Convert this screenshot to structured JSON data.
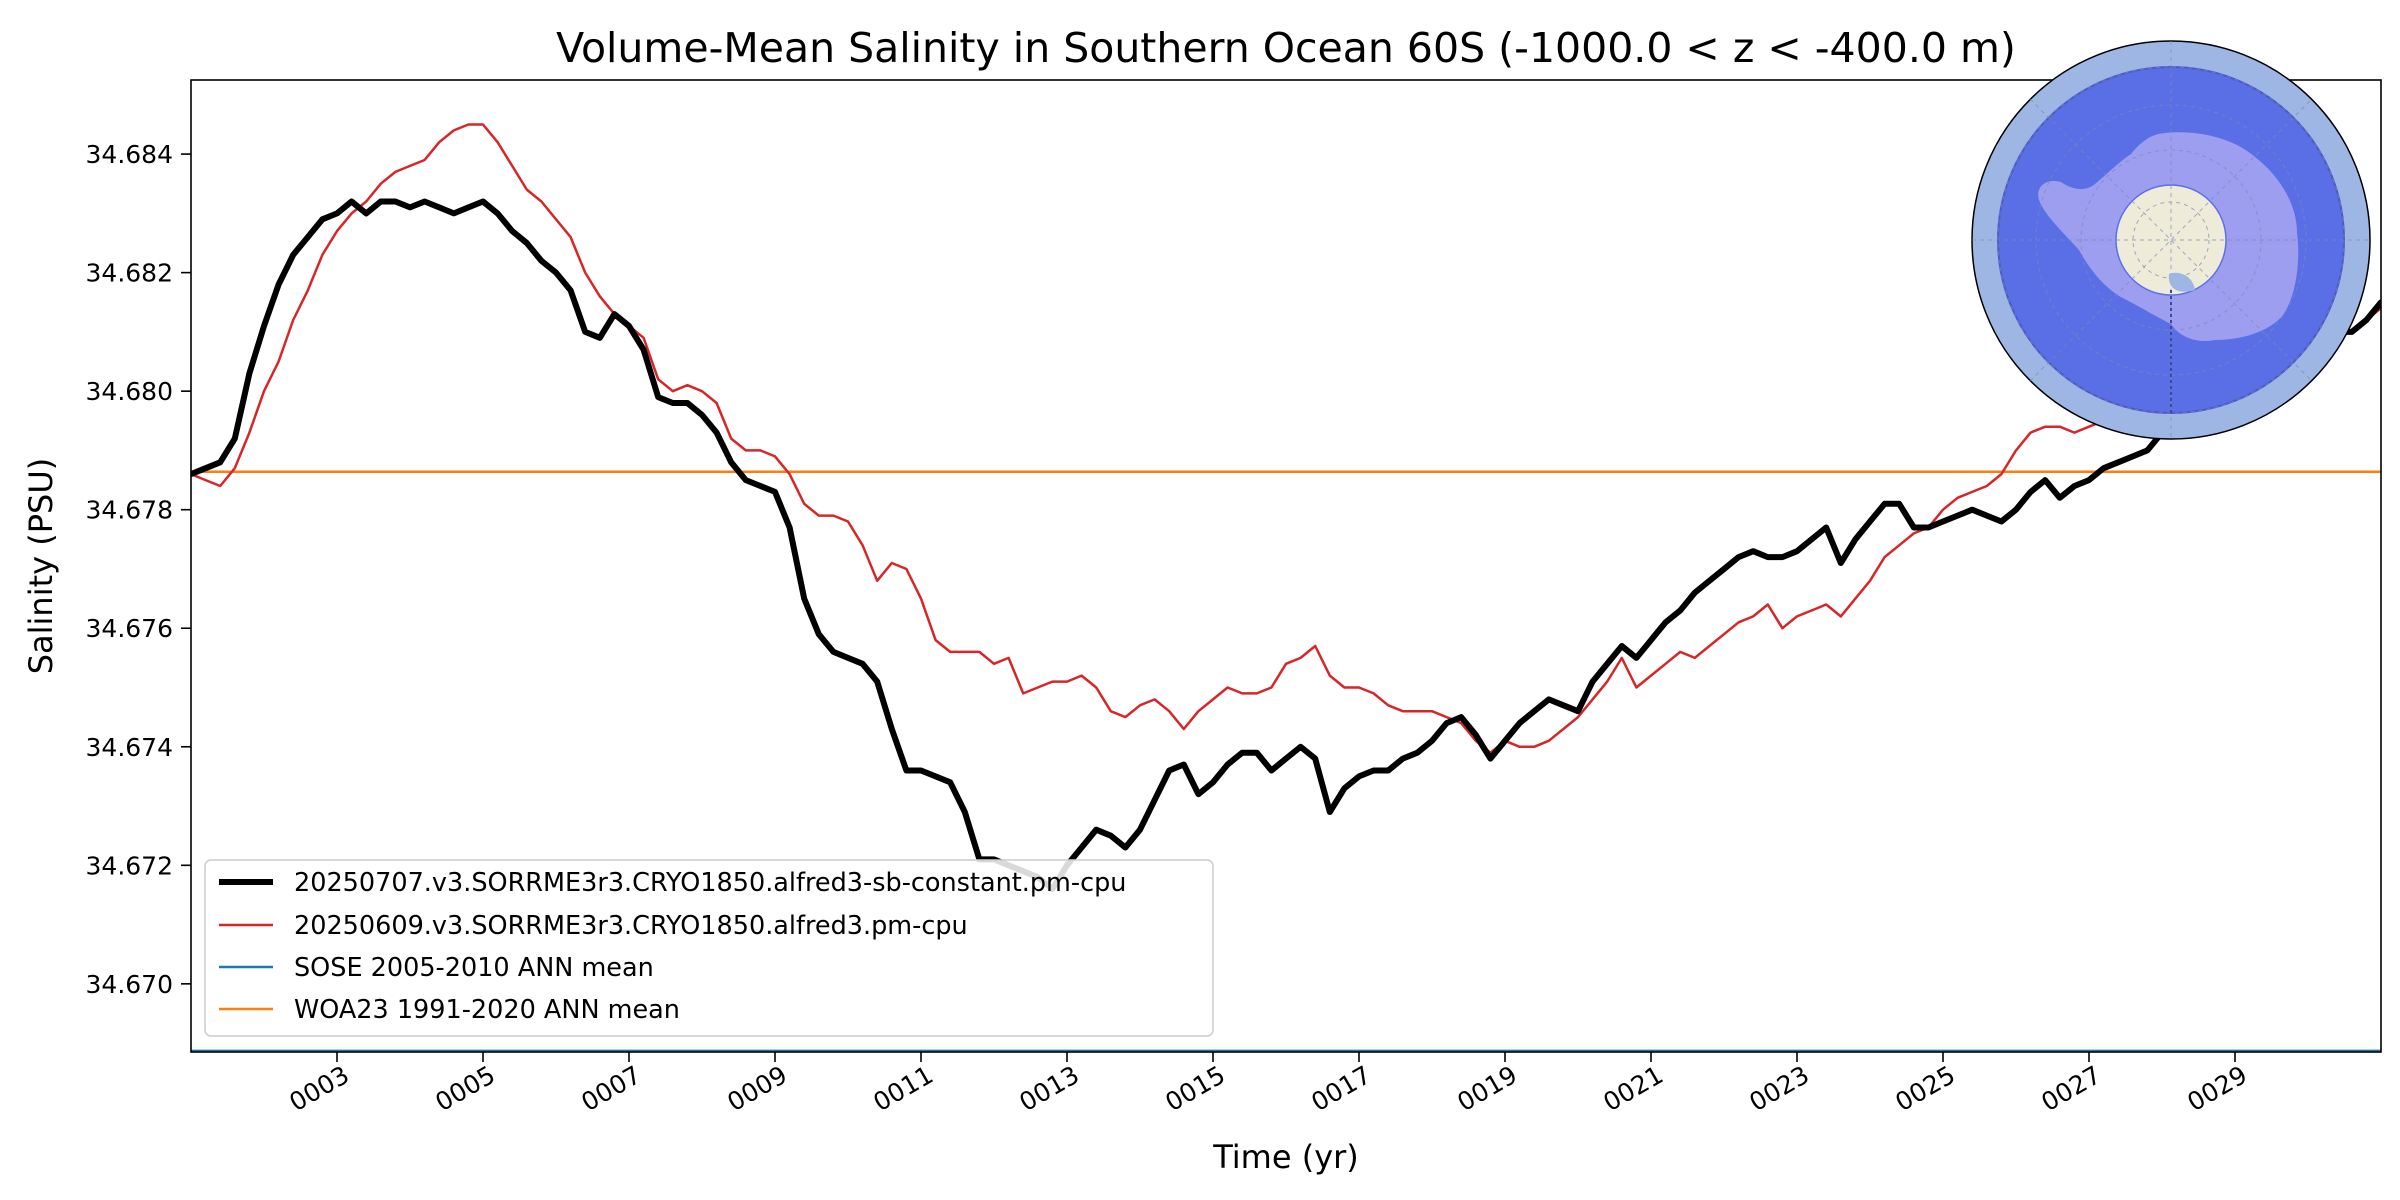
{
  "chart_data": {
    "type": "line",
    "title": "Volume-Mean Salinity in Southern Ocean 60S (-1000.0 < z < -400.0 m)",
    "xlabel": "Time (yr)",
    "ylabel": "Salinity (PSU)",
    "xlim": [
      1.0,
      31.0
    ],
    "ylim": [
      34.66885,
      34.68525
    ],
    "x_tick_values": [
      3,
      5,
      7,
      9,
      11,
      13,
      15,
      17,
      19,
      21,
      23,
      25,
      27,
      29
    ],
    "x_tick_labels": [
      "0003",
      "0005",
      "0007",
      "0009",
      "0011",
      "0013",
      "0015",
      "0017",
      "0019",
      "0021",
      "0023",
      "0025",
      "0027",
      "0029"
    ],
    "y_tick_values": [
      34.67,
      34.672,
      34.674,
      34.676,
      34.678,
      34.68,
      34.682,
      34.684
    ],
    "y_tick_labels": [
      "34.670",
      "34.672",
      "34.674",
      "34.676",
      "34.678",
      "34.680",
      "34.682",
      "34.684"
    ],
    "grid": false,
    "legend_position": "lower-left",
    "series": [
      {
        "name": "20250707.v3.SORRME3r3.CRYO1850.alfred3-sb-constant.pm-cpu",
        "color": "#000000",
        "style": "thick",
        "x": [
          1.0,
          1.2,
          1.4,
          1.6,
          1.8,
          2.0,
          2.2,
          2.4,
          2.6,
          2.8,
          3.0,
          3.2,
          3.4,
          3.6,
          3.8,
          4.0,
          4.2,
          4.4,
          4.6,
          4.8,
          5.0,
          5.2,
          5.4,
          5.6,
          5.8,
          6.0,
          6.2,
          6.4,
          6.6,
          6.8,
          7.0,
          7.2,
          7.4,
          7.6,
          7.8,
          8.0,
          8.2,
          8.4,
          8.6,
          8.8,
          9.0,
          9.2,
          9.4,
          9.6,
          9.8,
          10.0,
          10.2,
          10.4,
          10.6,
          10.8,
          11.0,
          11.2,
          11.4,
          11.6,
          11.8,
          12.0,
          12.2,
          12.4,
          12.6,
          12.8,
          13.0,
          13.2,
          13.4,
          13.6,
          13.8,
          14.0,
          14.2,
          14.4,
          14.6,
          14.8,
          15.0,
          15.2,
          15.4,
          15.6,
          15.8,
          16.0,
          16.2,
          16.4,
          16.6,
          16.8,
          17.0,
          17.2,
          17.4,
          17.6,
          17.8,
          18.0,
          18.2,
          18.4,
          18.6,
          18.8,
          19.0,
          19.2,
          19.4,
          19.6,
          19.8,
          20.0,
          20.2,
          20.4,
          20.6,
          20.8,
          21.0,
          21.2,
          21.4,
          21.6,
          21.8,
          22.0,
          22.2,
          22.4,
          22.6,
          22.8,
          23.0,
          23.2,
          23.4,
          23.6,
          23.8,
          24.0,
          24.2,
          24.4,
          24.6,
          24.8,
          25.0,
          25.2,
          25.4,
          25.6,
          25.8,
          26.0,
          26.2,
          26.4,
          26.6,
          26.8,
          27.0,
          27.2,
          27.4,
          27.6,
          27.8,
          28.0,
          30.4,
          30.6,
          30.8,
          31.0
        ],
        "y": [
          34.6786,
          34.6787,
          34.6788,
          34.6792,
          34.6803,
          34.6811,
          34.6818,
          34.6823,
          34.6826,
          34.6829,
          34.683,
          34.6832,
          34.683,
          34.6832,
          34.6832,
          34.6831,
          34.6832,
          34.6831,
          34.683,
          34.6831,
          34.6832,
          34.683,
          34.6827,
          34.6825,
          34.6822,
          34.682,
          34.6817,
          34.681,
          34.6809,
          34.6813,
          34.6811,
          34.6807,
          34.6799,
          34.6798,
          34.6798,
          34.6796,
          34.6793,
          34.6788,
          34.6785,
          34.6784,
          34.6783,
          34.6777,
          34.6765,
          34.6759,
          34.6756,
          34.6755,
          34.6754,
          34.6751,
          34.6743,
          34.6736,
          34.6736,
          34.6735,
          34.6734,
          34.6729,
          34.6721,
          34.6721,
          34.672,
          34.6719,
          34.6718,
          34.6716,
          34.672,
          34.6723,
          34.6726,
          34.6725,
          34.6723,
          34.6726,
          34.6731,
          34.6736,
          34.6737,
          34.6732,
          34.6734,
          34.6737,
          34.6739,
          34.6739,
          34.6736,
          34.6738,
          34.674,
          34.6738,
          34.6729,
          34.6733,
          34.6735,
          34.6736,
          34.6736,
          34.6738,
          34.6739,
          34.6741,
          34.6744,
          34.6745,
          34.6742,
          34.6738,
          34.6741,
          34.6744,
          34.6746,
          34.6748,
          34.6747,
          34.6746,
          34.6751,
          34.6754,
          34.6757,
          34.6755,
          34.6758,
          34.6761,
          34.6763,
          34.6766,
          34.6768,
          34.677,
          34.6772,
          34.6773,
          34.6772,
          34.6772,
          34.6773,
          34.6775,
          34.6777,
          34.6771,
          34.6775,
          34.6778,
          34.6781,
          34.6781,
          34.6777,
          34.6777,
          34.6778,
          34.6779,
          34.678,
          34.6779,
          34.6778,
          34.678,
          34.6783,
          34.6785,
          34.6782,
          34.6784,
          34.6785,
          34.6787,
          34.6788,
          34.6789,
          34.679,
          34.6793,
          34.681,
          34.681,
          34.6812,
          34.6815
        ]
      },
      {
        "name": "20250609.v3.SORRME3r3.CRYO1850.alfred3.pm-cpu",
        "color": "#d62728",
        "style": "thin",
        "x": [
          1.0,
          1.2,
          1.4,
          1.6,
          1.8,
          2.0,
          2.2,
          2.4,
          2.6,
          2.8,
          3.0,
          3.2,
          3.4,
          3.6,
          3.8,
          4.0,
          4.2,
          4.4,
          4.6,
          4.8,
          5.0,
          5.2,
          5.4,
          5.6,
          5.8,
          6.0,
          6.2,
          6.4,
          6.6,
          6.8,
          7.0,
          7.2,
          7.4,
          7.6,
          7.8,
          8.0,
          8.2,
          8.4,
          8.6,
          8.8,
          9.0,
          9.2,
          9.4,
          9.6,
          9.8,
          10.0,
          10.2,
          10.4,
          10.6,
          10.8,
          11.0,
          11.2,
          11.4,
          11.6,
          11.8,
          12.0,
          12.2,
          12.4,
          12.6,
          12.8,
          13.0,
          13.2,
          13.4,
          13.6,
          13.8,
          14.0,
          14.2,
          14.4,
          14.6,
          14.8,
          15.0,
          15.2,
          15.4,
          15.6,
          15.8,
          16.0,
          16.2,
          16.4,
          16.6,
          16.8,
          17.0,
          17.2,
          17.4,
          17.6,
          17.8,
          18.0,
          18.2,
          18.4,
          18.6,
          18.8,
          19.0,
          19.2,
          19.4,
          19.6,
          19.8,
          20.0,
          20.2,
          20.4,
          20.6,
          20.8,
          21.0,
          21.2,
          21.4,
          21.6,
          21.8,
          22.0,
          22.2,
          22.4,
          22.6,
          22.8,
          23.0,
          23.2,
          23.4,
          23.6,
          23.8,
          24.0,
          24.2,
          24.4,
          24.6,
          24.8,
          25.0,
          25.2,
          25.4,
          25.6,
          25.8,
          26.0,
          26.2,
          26.4,
          26.6,
          26.8,
          27.0,
          27.2,
          30.4,
          30.6,
          30.8,
          31.0
        ],
        "y": [
          34.6786,
          34.6785,
          34.6784,
          34.6787,
          34.6793,
          34.68,
          34.6805,
          34.6812,
          34.6817,
          34.6823,
          34.6827,
          34.683,
          34.6832,
          34.6835,
          34.6837,
          34.6838,
          34.6839,
          34.6842,
          34.6844,
          34.6845,
          34.6845,
          34.6842,
          34.6838,
          34.6834,
          34.6832,
          34.6829,
          34.6826,
          34.682,
          34.6816,
          34.6813,
          34.6811,
          34.6809,
          34.6802,
          34.68,
          34.6801,
          34.68,
          34.6798,
          34.6792,
          34.679,
          34.679,
          34.6789,
          34.6786,
          34.6781,
          34.6779,
          34.6779,
          34.6778,
          34.6774,
          34.6768,
          34.6771,
          34.677,
          34.6765,
          34.6758,
          34.6756,
          34.6756,
          34.6756,
          34.6754,
          34.6755,
          34.6749,
          34.675,
          34.6751,
          34.6751,
          34.6752,
          34.675,
          34.6746,
          34.6745,
          34.6747,
          34.6748,
          34.6746,
          34.6743,
          34.6746,
          34.6748,
          34.675,
          34.6749,
          34.6749,
          34.675,
          34.6754,
          34.6755,
          34.6757,
          34.6752,
          34.675,
          34.675,
          34.6749,
          34.6747,
          34.6746,
          34.6746,
          34.6746,
          34.6745,
          34.6744,
          34.6741,
          34.6739,
          34.6741,
          34.674,
          34.674,
          34.6741,
          34.6743,
          34.6745,
          34.6748,
          34.6751,
          34.6755,
          34.675,
          34.6752,
          34.6754,
          34.6756,
          34.6755,
          34.6757,
          34.6759,
          34.6761,
          34.6762,
          34.6764,
          34.676,
          34.6762,
          34.6763,
          34.6764,
          34.6762,
          34.6765,
          34.6768,
          34.6772,
          34.6774,
          34.6776,
          34.6777,
          34.678,
          34.6782,
          34.6783,
          34.6784,
          34.6786,
          34.679,
          34.6793,
          34.6794,
          34.6794,
          34.6793,
          34.6794,
          34.6795,
          34.681,
          34.681,
          34.6812,
          34.6814
        ]
      },
      {
        "name": "SOSE 2005-2010 ANN mean",
        "color": "#1f77b4",
        "style": "hline",
        "y": 34.66887
      },
      {
        "name": "WOA23 1991-2020 ANN mean",
        "color": "#ff7f0e",
        "style": "hline",
        "y": 34.67864
      }
    ]
  },
  "inset_map": {
    "icon": "antarctica-polar-map-icon",
    "ocean_ring_color": "#9db6e3",
    "region_color": "#5a6fe6",
    "land_color": "#9d9ef0",
    "pole_color": "#eeecd9"
  }
}
